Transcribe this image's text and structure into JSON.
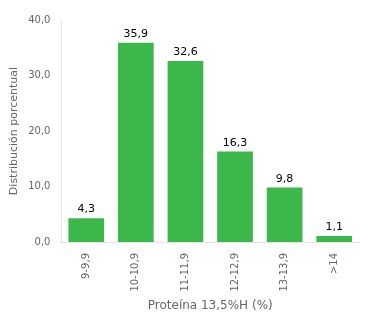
{
  "chart_data": {
    "type": "bar",
    "categories": [
      "9-9,9",
      "10-10,9",
      "11-11,9",
      "12-12,9",
      "13-13,9",
      ">14"
    ],
    "values": [
      4.3,
      35.9,
      32.6,
      16.3,
      9.8,
      1.1
    ],
    "value_labels": [
      "4,3",
      "35,9",
      "32,6",
      "16,3",
      "9,8",
      "1,1"
    ],
    "data_labels": true,
    "color": "#3cb84a",
    "xlabel": "Proteína 13,5%H (%)",
    "ylabel": "Distribución porcentual",
    "ylim": [
      0,
      40
    ],
    "yticks": [
      {
        "value": 0,
        "label": "0,0"
      },
      {
        "value": 10,
        "label": "10,0"
      },
      {
        "value": 20,
        "label": "20,0"
      },
      {
        "value": 30,
        "label": "30,0"
      },
      {
        "value": 40,
        "label": "40,0"
      }
    ],
    "grid": false
  }
}
